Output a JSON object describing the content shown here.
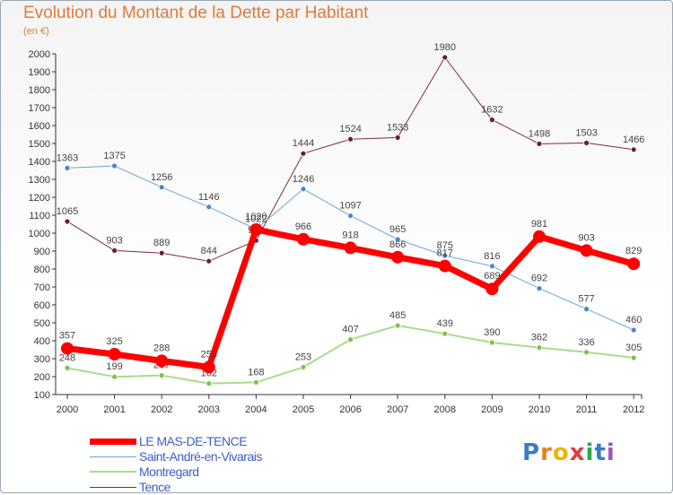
{
  "title": "Evolution du Montant de la Dette par Habitant",
  "subtitle": "(en €)",
  "logo_text": "Proxiti",
  "chart_data": {
    "type": "line",
    "title": "Evolution du Montant de la Dette par Habitant",
    "subtitle": "(en €)",
    "xlabel": "",
    "ylabel": "",
    "x": [
      "2000",
      "2001",
      "2002",
      "2003",
      "2004",
      "2005",
      "2006",
      "2007",
      "2008",
      "2009",
      "2010",
      "2011",
      "2012"
    ],
    "ylim": [
      100,
      2000
    ],
    "yticks": [
      100,
      200,
      300,
      400,
      500,
      600,
      700,
      800,
      900,
      1000,
      1100,
      1200,
      1300,
      1400,
      1500,
      1600,
      1700,
      1800,
      1900,
      2000
    ],
    "grid": false,
    "legend_position": "bottom-left",
    "series": [
      {
        "name": "Tence",
        "color": "#7a2f35",
        "dot": "#6b1f28",
        "width": 1,
        "values": [
          1065,
          903,
          889,
          844,
          959,
          1444,
          1524,
          1533,
          1980,
          1632,
          1498,
          1503,
          1466
        ],
        "labels": [
          "1065",
          "903",
          "889",
          "844",
          "959",
          "1444",
          "1524",
          "1533",
          "1980",
          "1632",
          "1498",
          "1503",
          "1466"
        ]
      },
      {
        "name": "Saint-André-en-Vivarais",
        "color": "#6fa3d2",
        "dot": "#4a86c6",
        "width": 1,
        "values": [
          1363,
          1375,
          1256,
          1146,
          1022,
          1246,
          1097,
          965,
          875,
          816,
          692,
          577,
          460
        ],
        "labels": [
          "1363",
          "1375",
          "1256",
          "1146",
          "1022",
          "1246",
          "1097",
          "965",
          "875",
          "816",
          "692",
          "577",
          "460"
        ]
      },
      {
        "name": "Montregard",
        "color": "#a8dc8a",
        "dot": "#7cc34e",
        "width": 2,
        "values": [
          248,
          199,
          207,
          162,
          168,
          253,
          407,
          485,
          439,
          390,
          362,
          336,
          305
        ],
        "labels": [
          "248",
          "199",
          "207",
          "162",
          "168",
          "253",
          "407",
          "485",
          "439",
          "390",
          "362",
          "336",
          "305"
        ]
      },
      {
        "name": "LE MAS-DE-TENCE",
        "color": "#ff0000",
        "dot": "#ff0000",
        "width": 7,
        "values": [
          357,
          325,
          288,
          253,
          1020,
          966,
          918,
          866,
          817,
          689,
          981,
          903,
          829
        ],
        "labels": [
          "357",
          "325",
          "288",
          "253",
          "1020",
          "966",
          "918",
          "866",
          "817",
          "689",
          "981",
          "903",
          "829"
        ]
      }
    ]
  },
  "legend": [
    {
      "label": "LE MAS-DE-TENCE",
      "color": "#ff0000",
      "thickness": 7
    },
    {
      "label": "Saint-André-en-Vivarais",
      "color": "#6fa3d2",
      "thickness": 1
    },
    {
      "label": "Montregard",
      "color": "#a8dc8a",
      "thickness": 2
    },
    {
      "label": "Tence",
      "color": "#7a2f35",
      "thickness": 1
    }
  ]
}
